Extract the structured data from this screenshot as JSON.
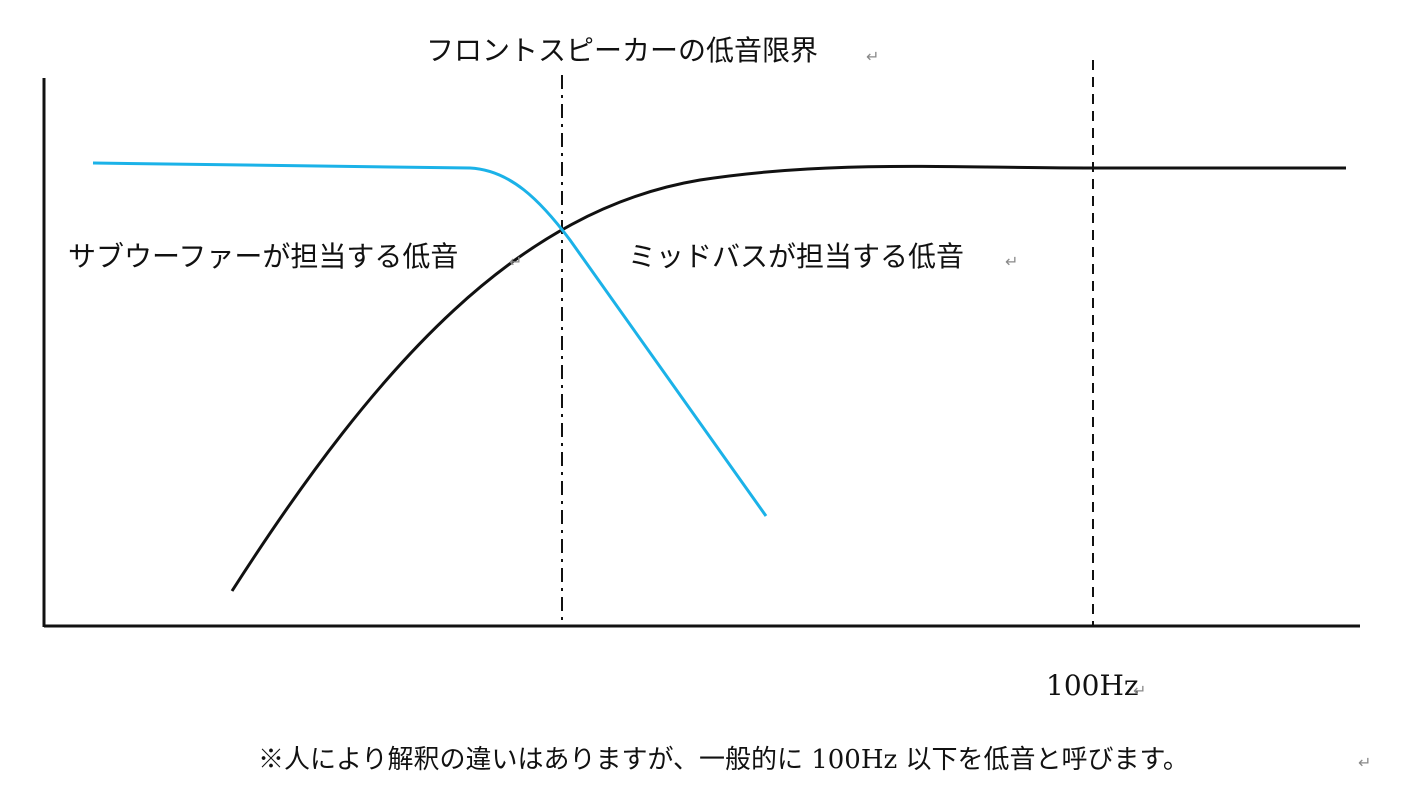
{
  "diagram": {
    "labels": {
      "front_speaker_limit": "フロントスピーカーの低音限界",
      "subwoofer_range": "サブウーファーが担当する低音",
      "midbass_range": "ミッドバスが担当する低音",
      "frequency_marker": "100Hz",
      "footnote": "※人により解釈の違いはありますが、一般的に 100Hz 以下を低音と呼びます。"
    },
    "paragraph_mark": "↵",
    "colors": {
      "subwoofer_curve": "#1bb2e8",
      "midbass_curve": "#111111",
      "axes": "#111111",
      "guide_lines": "#111111"
    }
  }
}
